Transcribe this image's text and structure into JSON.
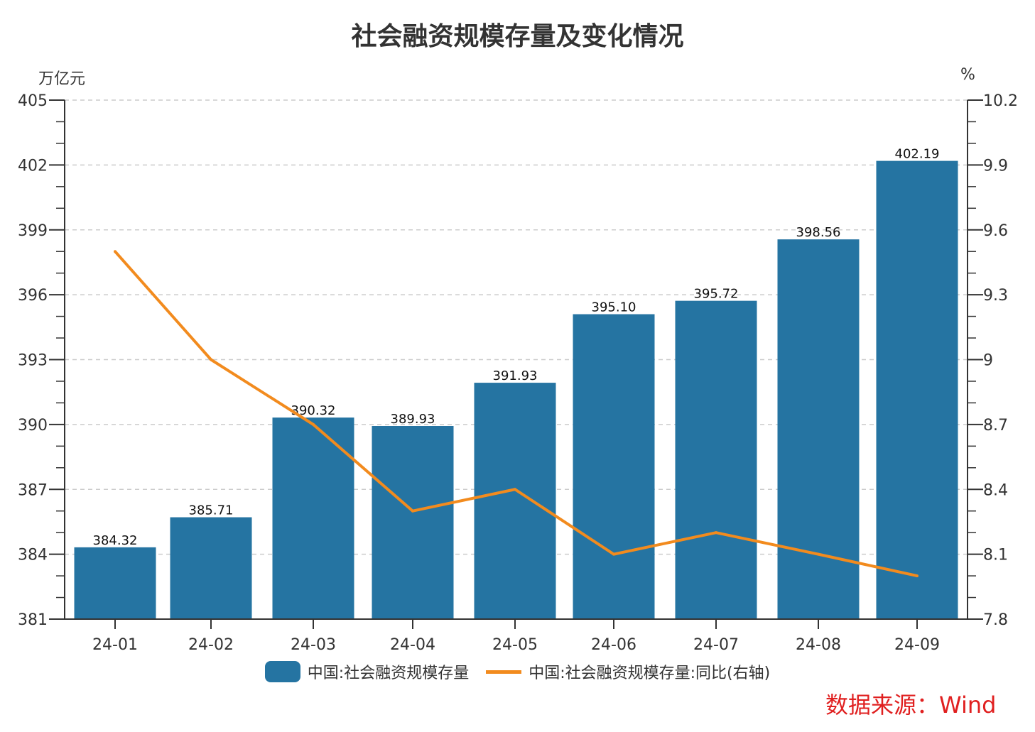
{
  "header": {
    "title": "社会融资规模存量及变化情况",
    "left_unit": "万亿元",
    "right_unit": "%"
  },
  "footer": {
    "source": "数据来源：Wind"
  },
  "legend": {
    "bar_label": "中国:社会融资规模存量",
    "line_label": "中国:社会融资规模存量:同比(右轴)"
  },
  "chart_data": {
    "type": "bar",
    "categories": [
      "24-01",
      "24-02",
      "24-03",
      "24-04",
      "24-05",
      "24-06",
      "24-07",
      "24-08",
      "24-09"
    ],
    "series": [
      {
        "name": "中国:社会融资规模存量",
        "type": "bar",
        "axis": "left",
        "color": "#2574a2",
        "values": [
          384.32,
          385.71,
          390.32,
          389.93,
          391.93,
          395.1,
          395.72,
          398.56,
          402.19
        ],
        "labels": [
          "384.32",
          "385.71",
          "390.32",
          "389.93",
          "391.93",
          "395.10",
          "395.72",
          "398.56",
          "402.19"
        ]
      },
      {
        "name": "中国:社会融资规模存量:同比(右轴)",
        "type": "line",
        "axis": "right",
        "color": "#f28b1e",
        "values": [
          9.5,
          9.0,
          8.7,
          8.3,
          8.4,
          8.1,
          8.2,
          8.1,
          8.0
        ]
      }
    ],
    "y_left": {
      "label": "万亿元",
      "range": [
        381,
        405
      ],
      "ticks": [
        "381",
        "384",
        "387",
        "390",
        "393",
        "396",
        "399",
        "402",
        "405"
      ]
    },
    "y_right": {
      "label": "%",
      "range": [
        7.8,
        10.2
      ],
      "ticks": [
        "7.8",
        "8.1",
        "8.4",
        "8.7",
        "9",
        "9.3",
        "9.6",
        "9.9",
        "10.2"
      ]
    },
    "grid": "horizontal dashed",
    "legend_position": "bottom-center"
  }
}
